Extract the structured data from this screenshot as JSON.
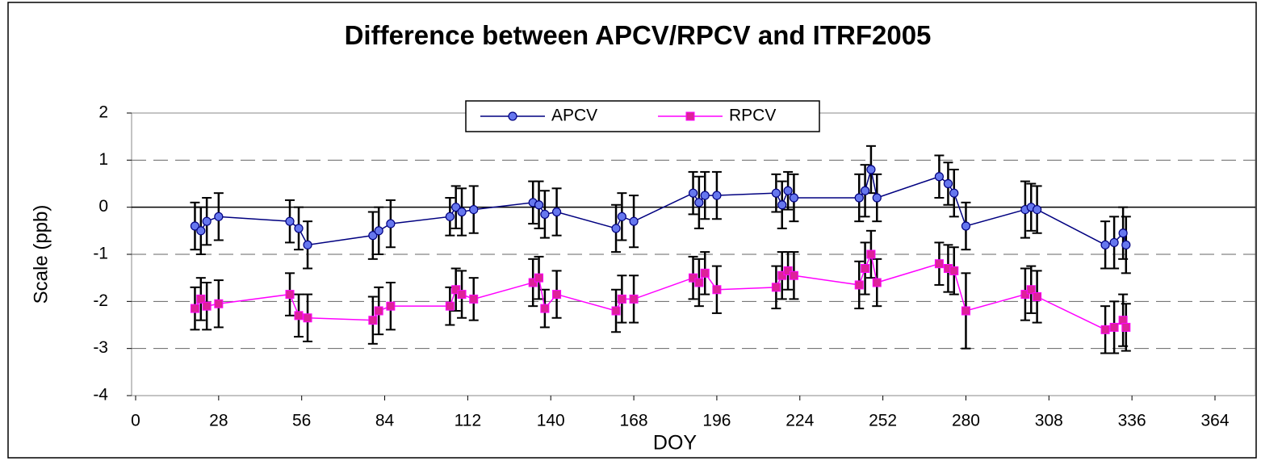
{
  "chart_data": {
    "type": "line",
    "title": "Difference between APCV/RPCV and ITRF2005",
    "x_label": "DOY",
    "y_label": "Scale (ppb)",
    "xlim": [
      0,
      364
    ],
    "xticks": [
      0,
      28,
      56,
      84,
      112,
      140,
      168,
      196,
      224,
      252,
      280,
      308,
      336,
      364
    ],
    "ylim": [
      -4,
      2
    ],
    "yticks": [
      -4,
      -3,
      -2,
      -1,
      0,
      1,
      2
    ],
    "grid": true,
    "legend": "top",
    "x": [
      20,
      22,
      24,
      28,
      52,
      55,
      58,
      80,
      82,
      86,
      106,
      108,
      110,
      114,
      134,
      136,
      138,
      142,
      162,
      164,
      168,
      188,
      190,
      192,
      196,
      216,
      218,
      220,
      222,
      244,
      246,
      248,
      250,
      271,
      274,
      276,
      280,
      300,
      302,
      304,
      327,
      330,
      333,
      334
    ],
    "series": [
      {
        "name": "APCV",
        "color": "#000080",
        "marker_color": "#6677ee",
        "values": [
          -0.4,
          -0.5,
          -0.3,
          -0.2,
          -0.3,
          -0.45,
          -0.8,
          -0.6,
          -0.5,
          -0.35,
          -0.2,
          0,
          -0.1,
          -0.05,
          0.1,
          0.05,
          -0.15,
          -0.1,
          -0.45,
          -0.2,
          -0.3,
          0.3,
          0.1,
          0.25,
          0.25,
          0.3,
          0.05,
          0.35,
          0.2,
          0.2,
          0.35,
          0.8,
          0.2,
          0.65,
          0.5,
          0.3,
          -0.4,
          -0.05,
          0,
          -0.05,
          -0.8,
          -0.75,
          -0.55,
          -0.8
        ],
        "errors": [
          0.5,
          0.5,
          0.5,
          0.5,
          0.45,
          0.45,
          0.5,
          0.5,
          0.5,
          0.5,
          0.4,
          0.45,
          0.5,
          0.5,
          0.45,
          0.5,
          0.5,
          0.5,
          0.5,
          0.5,
          0.55,
          0.45,
          0.55,
          0.5,
          0.5,
          0.4,
          0.5,
          0.4,
          0.5,
          0.5,
          0.55,
          0.5,
          0.5,
          0.45,
          0.45,
          0.5,
          0.5,
          0.6,
          0.5,
          0.5,
          0.5,
          0.55,
          0.55,
          0.6
        ]
      },
      {
        "name": "RPCV",
        "color": "#ff00ff",
        "marker_color": "#dd2299",
        "values": [
          -2.15,
          -1.95,
          -2.1,
          -2.05,
          -1.85,
          -2.3,
          -2.35,
          -2.4,
          -2.2,
          -2.1,
          -2.1,
          -1.75,
          -1.85,
          -1.95,
          -1.6,
          -1.5,
          -2.15,
          -1.85,
          -2.2,
          -1.95,
          -1.95,
          -1.5,
          -1.6,
          -1.4,
          -1.75,
          -1.7,
          -1.45,
          -1.35,
          -1.45,
          -1.65,
          -1.3,
          -1.0,
          -1.6,
          -1.2,
          -1.3,
          -1.35,
          -2.2,
          -1.85,
          -1.75,
          -1.9,
          -2.6,
          -2.55,
          -2.4,
          -2.55
        ],
        "errors": [
          0.45,
          0.45,
          0.5,
          0.5,
          0.45,
          0.45,
          0.5,
          0.5,
          0.5,
          0.5,
          0.4,
          0.45,
          0.5,
          0.45,
          0.5,
          0.45,
          0.4,
          0.5,
          0.45,
          0.5,
          0.5,
          0.45,
          0.5,
          0.45,
          0.5,
          0.45,
          0.5,
          0.4,
          0.5,
          0.5,
          0.55,
          0.5,
          0.5,
          0.45,
          0.5,
          0.5,
          0.8,
          0.55,
          0.5,
          0.55,
          0.5,
          0.55,
          0.55,
          0.5
        ]
      }
    ]
  }
}
